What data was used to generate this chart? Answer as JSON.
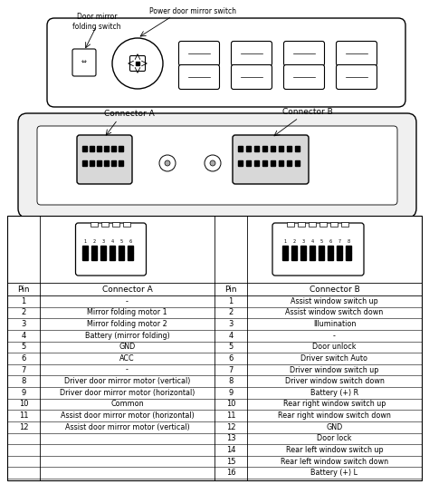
{
  "bg_color": "#ffffff",
  "line_color": "#000000",
  "connector_a_pins": [
    [
      1,
      "-"
    ],
    [
      2,
      "Mirror folding motor 1"
    ],
    [
      3,
      "Mirror folding motor 2"
    ],
    [
      4,
      "Battery (mirror folding)"
    ],
    [
      5,
      "GND"
    ],
    [
      6,
      "ACC"
    ],
    [
      7,
      "-"
    ],
    [
      8,
      "Driver door mirror motor (vertical)"
    ],
    [
      9,
      "Driver door mirror motor (horizontal)"
    ],
    [
      10,
      "Common"
    ],
    [
      11,
      "Assist door mirror motor (horizontal)"
    ],
    [
      12,
      "Assist door mirror motor (vertical)"
    ]
  ],
  "connector_b_pins": [
    [
      1,
      "Assist window switch up"
    ],
    [
      2,
      "Assist window switch down"
    ],
    [
      3,
      "Illumination"
    ],
    [
      4,
      "-"
    ],
    [
      5,
      "Door unlock"
    ],
    [
      6,
      "Driver switch Auto"
    ],
    [
      7,
      "Driver window switch up"
    ],
    [
      8,
      "Driver window switch down"
    ],
    [
      9,
      "Battery (+) R"
    ],
    [
      10,
      "Rear right window switch up"
    ],
    [
      11,
      "Rear right window switch down"
    ],
    [
      12,
      "GND"
    ],
    [
      13,
      "Door lock"
    ],
    [
      14,
      "Rear left window switch up"
    ],
    [
      15,
      "Rear left window switch down"
    ],
    [
      16,
      "Battery (+) L"
    ]
  ],
  "label_door_mirror_folding": "Door mirror\nfolding switch",
  "label_power_door_mirror": "Power door mirror switch",
  "label_connector_a": "Connector A",
  "label_connector_b": "Connector B",
  "table_header_pin": "Pin",
  "table_header_conn_a": "Connector A",
  "table_header_conn_b": "Connector B"
}
